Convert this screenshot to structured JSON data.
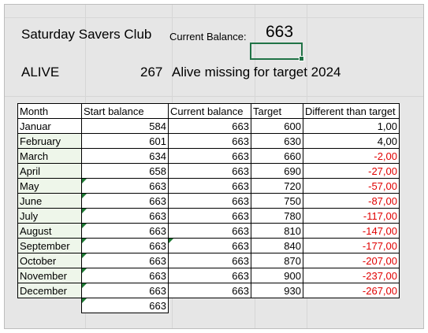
{
  "header": {
    "title": "Saturday Savers Club",
    "current_balance_label": "Current Balance:",
    "current_balance_value": "663",
    "alive_label": "ALIVE",
    "alive_count": "267",
    "alive_text": "Alive missing for target 2024"
  },
  "table": {
    "columns": [
      "Month",
      "Start balance",
      "Current balance",
      "Target",
      "Different than target"
    ],
    "rows": [
      {
        "month": "Januar",
        "start": "584",
        "current": "663",
        "target": "600",
        "diff": "1,00",
        "negative": false
      },
      {
        "month": "February",
        "start": "601",
        "current": "663",
        "target": "630",
        "diff": "4,00",
        "negative": false
      },
      {
        "month": "March",
        "start": "634",
        "current": "663",
        "target": "660",
        "diff": "-2,00",
        "negative": true
      },
      {
        "month": "April",
        "start": "658",
        "current": "663",
        "target": "690",
        "diff": "-27,00",
        "negative": true
      },
      {
        "month": "May",
        "start": "663",
        "current": "663",
        "target": "720",
        "diff": "-57,00",
        "negative": true
      },
      {
        "month": "June",
        "start": "663",
        "current": "663",
        "target": "750",
        "diff": "-87,00",
        "negative": true
      },
      {
        "month": "July",
        "start": "663",
        "current": "663",
        "target": "780",
        "diff": "-117,00",
        "negative": true
      },
      {
        "month": "August",
        "start": "663",
        "current": "663",
        "target": "810",
        "diff": "-147,00",
        "negative": true
      },
      {
        "month": "September",
        "start": "663",
        "current": "663",
        "target": "840",
        "diff": "-177,00",
        "negative": true
      },
      {
        "month": "October",
        "start": "663",
        "current": "663",
        "target": "870",
        "diff": "-207,00",
        "negative": true
      },
      {
        "month": "November",
        "start": "663",
        "current": "663",
        "target": "900",
        "diff": "-237,00",
        "negative": true
      },
      {
        "month": "December",
        "start": "663",
        "current": "663",
        "target": "930",
        "diff": "-267,00",
        "negative": true
      }
    ],
    "total_start": "663"
  },
  "colors": {
    "selection": "#217346",
    "negative": "#e00000",
    "error_triangle": "#1e7b34"
  }
}
